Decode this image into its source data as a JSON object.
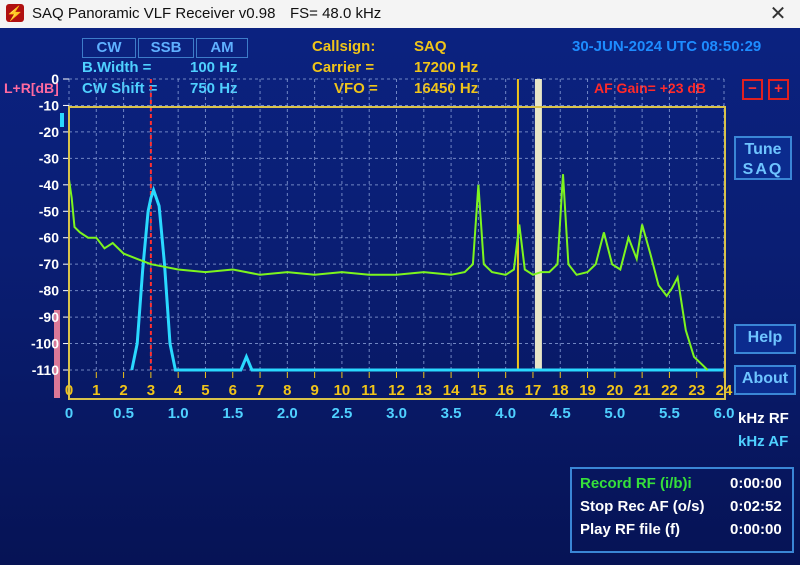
{
  "window": {
    "title": "SAQ Panoramic VLF Receiver v0.98",
    "fs": "FS=  48.0 kHz",
    "close": "✕"
  },
  "modes": [
    {
      "label": "CW"
    },
    {
      "label": "SSB"
    },
    {
      "label": "AM"
    }
  ],
  "params": {
    "bwidth_label": "B.Width  =",
    "bwidth_value": "100 Hz",
    "cwshift_label": "CW  Shift =",
    "cwshift_value": "750 Hz",
    "callsign_label": "Callsign:",
    "callsign_value": "SAQ",
    "carrier_label": "Carrier =",
    "carrier_value": "17200 Hz",
    "vfo_label": "VFO =",
    "vfo_value": "16450 Hz"
  },
  "datetime": "30-JUN-2024 UTC 08:50:29",
  "af_gain": {
    "label": "AF Gain= +23 dB",
    "minus": "−",
    "plus": "+"
  },
  "y_label": "L+R[dB]",
  "buttons": {
    "tune": "Tune SAQ",
    "tune_line1": "Tune",
    "tune_line2": "SAQ",
    "help": "Help",
    "about": "About"
  },
  "recording": [
    {
      "label": "Record  RF (i/b)i",
      "time": "0:00:00",
      "color": "#35e03a"
    },
    {
      "label": "Stop Rec AF (o/s)",
      "time": "0:02:52",
      "color": "#ffffff"
    },
    {
      "label": "Play RF file (f)",
      "time": "0:00:00",
      "color": "#ffffff"
    }
  ],
  "colors": {
    "spectrum": "#7df51e",
    "filter": "#2ad9ff",
    "marker_cw": "#ff3030",
    "vfo_line": "#f0c419",
    "carrier_bar": "#e8e6c8",
    "grid": "#8aa0d8",
    "frame": "#d9c34a"
  },
  "chart_data": {
    "type": "line",
    "y_ticks": [
      "0",
      "-10",
      "-20",
      "-30",
      "-40",
      "-50",
      "-60",
      "-70",
      "-80",
      "-90",
      "-100",
      "-110"
    ],
    "ylim": [
      -110,
      0
    ],
    "x_rf_ticks": [
      "0",
      "1",
      "2",
      "3",
      "4",
      "5",
      "6",
      "7",
      "8",
      "9",
      "10",
      "11",
      "12",
      "13",
      "14",
      "15",
      "16",
      "17",
      "18",
      "19",
      "20",
      "21",
      "22",
      "23",
      "24"
    ],
    "x_rf_unit": "kHz RF",
    "x_af_ticks": [
      "0",
      "0.5",
      "1.0",
      "1.5",
      "2.0",
      "2.5",
      "3.0",
      "3.5",
      "4.0",
      "4.5",
      "5.0",
      "5.5",
      "6.0"
    ],
    "x_af_unit": "kHz AF",
    "xlim_rf": [
      0,
      24
    ],
    "series": [
      {
        "values_x": [
          0,
          0.1,
          0.2,
          0.4,
          0.7,
          1.0,
          1.3,
          1.6,
          2.0,
          2.5,
          3.0,
          3.5,
          4.0,
          5,
          6,
          7,
          8,
          9,
          10,
          11,
          12,
          13,
          14,
          14.5,
          14.8,
          15.0,
          15.2,
          15.5,
          16,
          16.3,
          16.5,
          16.7,
          17.0,
          17.3,
          17.6,
          17.9,
          18.1,
          18.3,
          18.6,
          19,
          19.3,
          19.6,
          19.9,
          20.2,
          20.5,
          20.8,
          21.0,
          21.3,
          21.6,
          21.9,
          22.1,
          22.3,
          22.6,
          22.9,
          23.2,
          23.4
        ],
        "values_y": [
          -38,
          -45,
          -56,
          -58,
          -60,
          -60,
          -64,
          -62,
          -66,
          -68,
          -70,
          -71,
          -72,
          -73,
          -72,
          -74,
          -73,
          -74,
          -73,
          -74,
          -74,
          -73,
          -74,
          -73,
          -70,
          -40,
          -70,
          -73,
          -74,
          -72,
          -55,
          -72,
          -74,
          -73,
          -73,
          -70,
          -36,
          -70,
          -74,
          -73,
          -70,
          -58,
          -70,
          -72,
          -60,
          -68,
          -55,
          -66,
          -78,
          -82,
          -79,
          -75,
          -95,
          -105,
          -108,
          -110
        ]
      },
      {
        "values_x": [
          2.3,
          2.5,
          2.7,
          2.9,
          3.0,
          3.1,
          3.3,
          3.5,
          3.7,
          3.9,
          4.1,
          4.3,
          5,
          6,
          6.3,
          6.5,
          6.7,
          7,
          8,
          10,
          12,
          14,
          16,
          18,
          20,
          22,
          24
        ],
        "values_y": [
          -110,
          -100,
          -72,
          -50,
          -45,
          -42,
          -48,
          -70,
          -100,
          -110,
          -110,
          -110,
          -110,
          -110,
          -110,
          -105,
          -110,
          -110,
          -110,
          -110,
          -110,
          -110,
          -110,
          -110,
          -110,
          -110,
          -110
        ]
      }
    ],
    "cw_marker_khz": 3.0,
    "vfo_khz": 16.45,
    "carrier_khz": 17.2
  }
}
